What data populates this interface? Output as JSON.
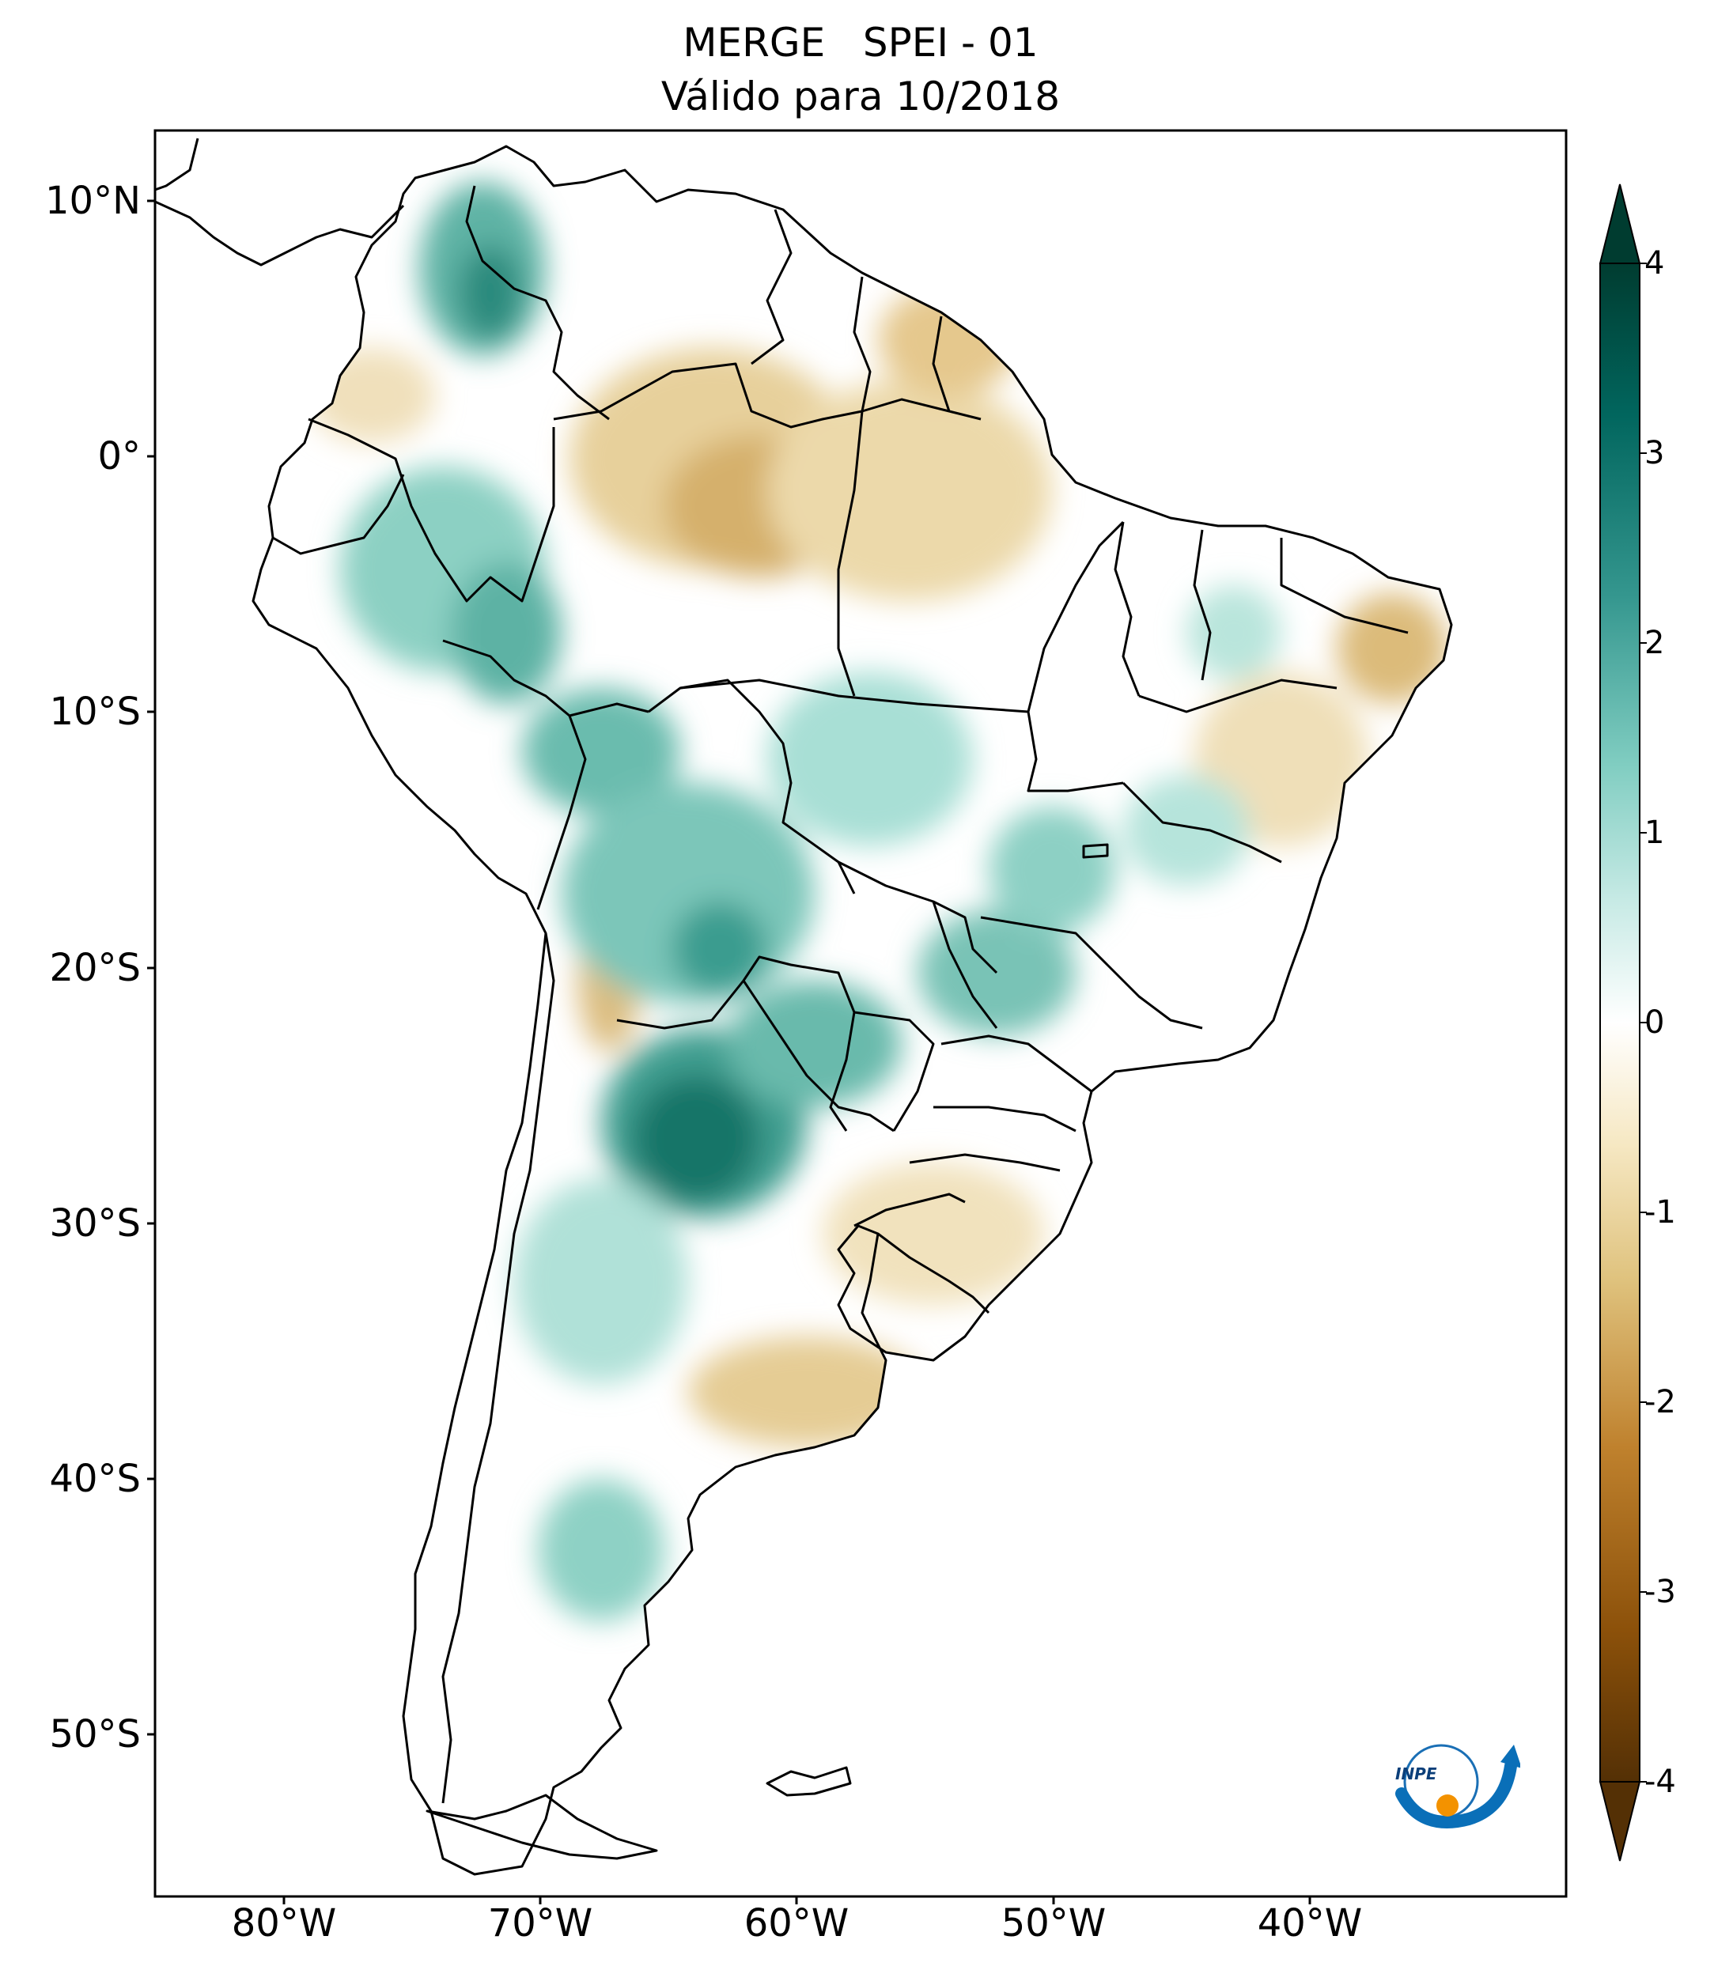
{
  "title": {
    "line1": "MERGE   SPEI - 01",
    "line2": "Válido para 10/2018"
  },
  "axes": {
    "lat_labels": [
      "10°N",
      "0°",
      "10°S",
      "20°S",
      "30°S",
      "40°S",
      "50°S"
    ],
    "lon_labels": [
      "80°W",
      "70°W",
      "60°W",
      "50°W",
      "40°W"
    ],
    "lon_range": [
      -85,
      -30
    ],
    "lat_range": [
      -56,
      13
    ]
  },
  "colorbar": {
    "ticks": [
      "4",
      "3",
      "2",
      "1",
      "0",
      "-1",
      "-2",
      "-3",
      "-4"
    ],
    "min": -4,
    "max": 4,
    "extend": "both",
    "colormap": "BrBG",
    "colors": [
      "#543005",
      "#8c510a",
      "#bf812d",
      "#dfc27d",
      "#f6e8c3",
      "#ffffff",
      "#c7eae5",
      "#80cdc1",
      "#35978f",
      "#01665e",
      "#003c30"
    ]
  },
  "logo": {
    "text": "INPE"
  },
  "map": {
    "variable": "SPEI - 01",
    "dry_regions": [
      "Northern Amazon / Roraima",
      "Amapá coast",
      "Northeast Brazil (Pernambuco-Paraíba)",
      "Bahia interior",
      "Pampas / Buenos Aires",
      "Uruguay",
      "Atacama margin"
    ],
    "wet_regions": [
      "Colombian Andes",
      "Western Amazon / Peru",
      "Bolivia",
      "Northern Argentina / Paraguay (Chaco)",
      "Mato Grosso do Sul",
      "Patagonia (patches)"
    ],
    "colors": {
      "land_neutral": "#ffffff",
      "dry": "#e2c98a",
      "dry_strong": "#c89a4d",
      "wet": "#a9ded4",
      "wet_mid": "#5fb5a6",
      "wet_strong": "#1e7f72",
      "border": "#000000"
    }
  }
}
